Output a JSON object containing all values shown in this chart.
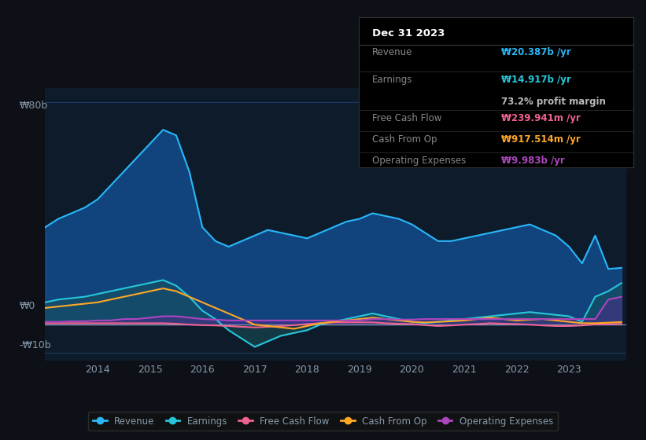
{
  "bg_color": "#0d1117",
  "plot_bg_color": "#0d1b2a",
  "grid_color": "#1e3a5f",
  "text_color": "#8899aa",
  "title_color": "#ffffff",
  "ylabel_80": "₩80b",
  "ylabel_0": "₩0",
  "ylabel_neg10": "-₩10b",
  "years_x": [
    2013.0,
    2013.25,
    2013.5,
    2013.75,
    2014.0,
    2014.25,
    2014.5,
    2014.75,
    2015.0,
    2015.25,
    2015.5,
    2015.75,
    2016.0,
    2016.25,
    2016.5,
    2016.75,
    2017.0,
    2017.25,
    2017.5,
    2017.75,
    2018.0,
    2018.25,
    2018.5,
    2018.75,
    2019.0,
    2019.25,
    2019.5,
    2019.75,
    2020.0,
    2020.25,
    2020.5,
    2020.75,
    2021.0,
    2021.25,
    2021.5,
    2021.75,
    2022.0,
    2022.25,
    2022.5,
    2022.75,
    2023.0,
    2023.25,
    2023.5,
    2023.75,
    2024.0
  ],
  "revenue": [
    35,
    38,
    40,
    42,
    45,
    50,
    55,
    60,
    65,
    70,
    68,
    55,
    35,
    30,
    28,
    30,
    32,
    34,
    33,
    32,
    31,
    33,
    35,
    37,
    38,
    40,
    39,
    38,
    36,
    33,
    30,
    30,
    31,
    32,
    33,
    34,
    35,
    36,
    34,
    32,
    28,
    22,
    32,
    20,
    20.387
  ],
  "earnings": [
    8,
    9,
    9.5,
    10,
    11,
    12,
    13,
    14,
    15,
    16,
    14,
    10,
    5,
    2,
    -2,
    -5,
    -8,
    -6,
    -4,
    -3,
    -2,
    0,
    1,
    2,
    3,
    4,
    3,
    2,
    1,
    0.5,
    1,
    1.5,
    2,
    2.5,
    3,
    3.5,
    4,
    4.5,
    4,
    3.5,
    3,
    1,
    10,
    12,
    14.917
  ],
  "free_cash_flow": [
    0.5,
    0.5,
    0.5,
    0.5,
    0.5,
    0.5,
    0.5,
    0.5,
    0.5,
    0.5,
    0.3,
    0,
    -0.2,
    -0.3,
    -0.5,
    -0.8,
    -1,
    -0.8,
    -0.5,
    -0.2,
    0.2,
    0.5,
    0.8,
    0.8,
    0.8,
    0.8,
    0.5,
    0.3,
    0.2,
    -0.2,
    -0.5,
    -0.3,
    0,
    0.2,
    0.5,
    0.3,
    0.2,
    0,
    -0.3,
    -0.5,
    -0.5,
    -0.3,
    0.1,
    0.15,
    0.24
  ],
  "cash_from_op": [
    6,
    6.5,
    7,
    7.5,
    8,
    9,
    10,
    11,
    12,
    13,
    12,
    10,
    8,
    6,
    4,
    2,
    0,
    -0.5,
    -1,
    -1.5,
    -0.5,
    0.5,
    1,
    1.5,
    2,
    2.5,
    2,
    1.5,
    1,
    0.8,
    1,
    1.2,
    1.5,
    2,
    2.5,
    2,
    1.5,
    1.8,
    2,
    1.5,
    1,
    0.5,
    0.5,
    0.7,
    0.9175
  ],
  "operating_expenses": [
    1,
    1,
    1.2,
    1.2,
    1.5,
    1.5,
    2,
    2,
    2.5,
    3,
    3,
    2.5,
    2,
    1.8,
    1.5,
    1.5,
    1.5,
    1.5,
    1.5,
    1.5,
    1.5,
    1.5,
    1.5,
    1.5,
    1.5,
    2,
    2,
    1.8,
    1.8,
    2,
    2,
    2,
    2,
    2,
    2,
    2,
    2,
    2,
    2,
    2,
    2,
    2,
    2,
    9,
    9.983
  ],
  "revenue_color": "#29b6f6",
  "earnings_color": "#26c6da",
  "free_cash_flow_color": "#f06292",
  "cash_from_op_color": "#ffa726",
  "operating_expenses_color": "#ab47bc",
  "xlim": [
    2013.0,
    2024.1
  ],
  "ylim": [
    -13,
    85
  ],
  "xticks": [
    2014,
    2015,
    2016,
    2017,
    2018,
    2019,
    2020,
    2021,
    2022,
    2023
  ],
  "legend_labels": [
    "Revenue",
    "Earnings",
    "Free Cash Flow",
    "Cash From Op",
    "Operating Expenses"
  ],
  "legend_colors": [
    "#29b6f6",
    "#26c6da",
    "#f06292",
    "#ffa726",
    "#ab47bc"
  ],
  "info_box": {
    "date": "Dec 31 2023",
    "revenue_val": "₩20.387b /yr",
    "earnings_val": "₩14.917b /yr",
    "margin_val": "73.2% profit margin",
    "fcf_val": "₩239.941m /yr",
    "cash_op_val": "₩917.514m /yr",
    "op_exp_val": "₩9.983b /yr"
  }
}
